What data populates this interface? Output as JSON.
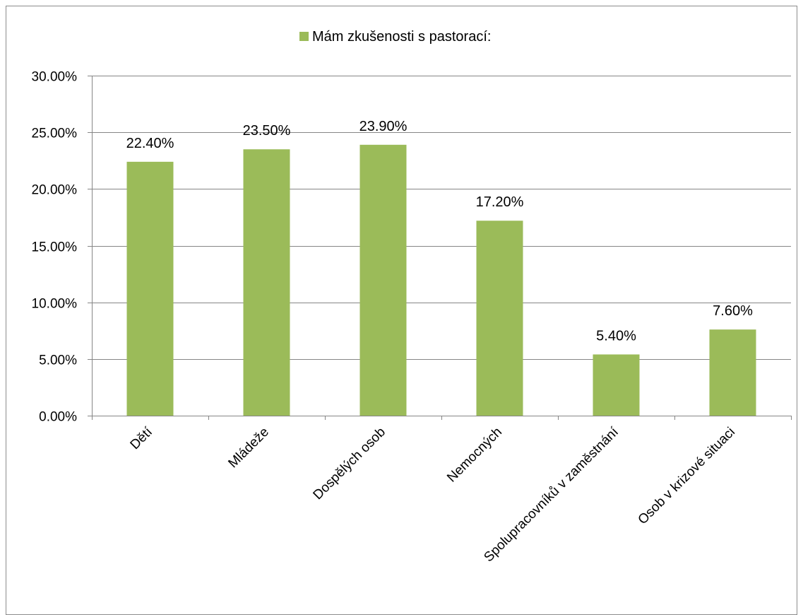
{
  "chart_data": {
    "type": "bar",
    "title": "",
    "xlabel": "",
    "ylabel": "",
    "categories": [
      "Dětí",
      "Mládeže",
      "Dospělých osob",
      "Nemocných",
      "Spolupracovníků v zaměstnání",
      "Osob v krizové situaci"
    ],
    "series": [
      {
        "name": "Mám zkušenosti s pastorací:",
        "values": [
          22.4,
          23.5,
          23.9,
          17.2,
          5.4,
          7.6
        ],
        "data_labels": [
          "22.40%",
          "23.50%",
          "23.90%",
          "17.20%",
          "5.40%",
          "7.60%"
        ],
        "color": "#9bbb59"
      }
    ],
    "ylim": [
      0,
      30
    ],
    "yticks": [
      0,
      5,
      10,
      15,
      20,
      25,
      30
    ],
    "ytick_labels": [
      "0.00%",
      "5.00%",
      "10.00%",
      "15.00%",
      "20.00%",
      "25.00%",
      "30.00%"
    ],
    "grid": true,
    "legend_position": "top"
  }
}
